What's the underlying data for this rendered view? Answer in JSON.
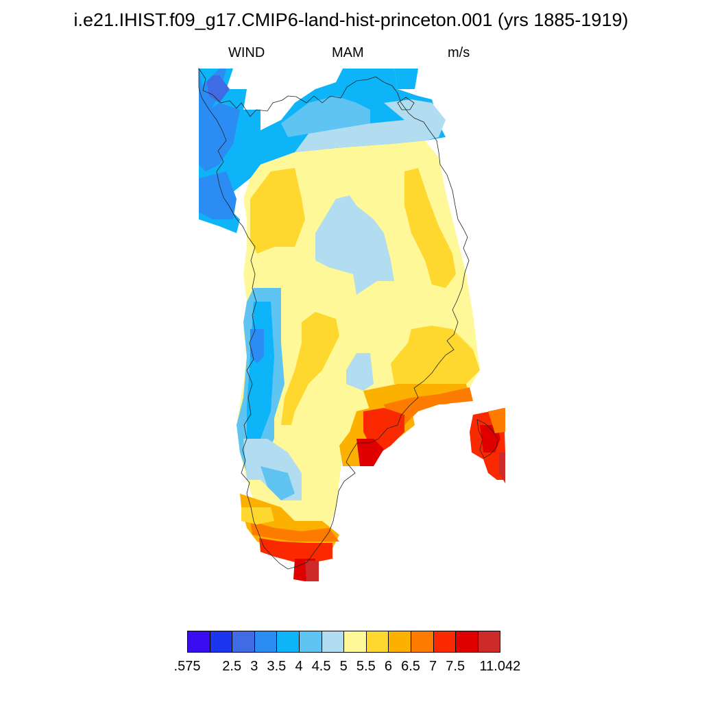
{
  "title": "i.e21.IHIST.f09_g17.CMIP6-land-hist-princeton.001 (yrs 1885-1919)",
  "variable": "WIND",
  "season": "MAM",
  "units": "m/s",
  "colorbar": {
    "labels": [
      ".575",
      "2.5",
      "3",
      "3.5",
      "4",
      "4.5",
      "5",
      "5.5",
      "6",
      "6.5",
      "7",
      "7.5",
      "11.042"
    ],
    "colors": [
      "#3a0df0",
      "#1c35ee",
      "#3f6be4",
      "#2b8cf3",
      "#0db4f8",
      "#60c4f2",
      "#b2dcf0",
      "#fff899",
      "#fed82e",
      "#fcb000",
      "#fd7c00",
      "#fb2900",
      "#e00000",
      "#cf2a2a"
    ]
  },
  "map": {
    "region": "Greenland",
    "field_levels": "color class index 0-13 per grid cell (wind speed bins)"
  }
}
